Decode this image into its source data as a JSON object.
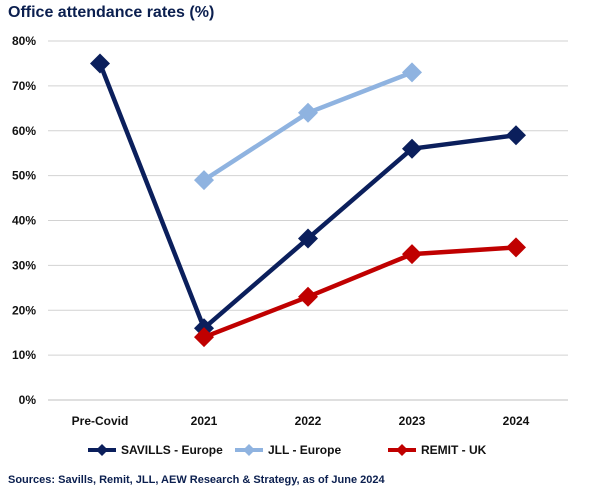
{
  "chart_data": {
    "type": "line",
    "title": "Office attendance rates (%)",
    "categories": [
      "Pre-Covid",
      "2021",
      "2022",
      "2023",
      "2024"
    ],
    "yticks": [
      "0%",
      "10%",
      "20%",
      "30%",
      "40%",
      "50%",
      "60%",
      "70%",
      "80%"
    ],
    "ylim": [
      0,
      80
    ],
    "grid": true,
    "legend_position": "bottom",
    "series": [
      {
        "name": "SAVILLS - Europe",
        "color": "#0b1f5c",
        "values": [
          75,
          16,
          36,
          56,
          59
        ]
      },
      {
        "name": "JLL - Europe",
        "color": "#8fb3e0",
        "values": [
          null,
          49,
          64,
          73,
          null
        ]
      },
      {
        "name": "REMIT - UK",
        "color": "#c00000",
        "values": [
          null,
          14,
          23,
          32.5,
          34
        ]
      }
    ],
    "source": "Sources: Savills, Remit, JLL, AEW Research & Strategy, as of June 2024"
  }
}
